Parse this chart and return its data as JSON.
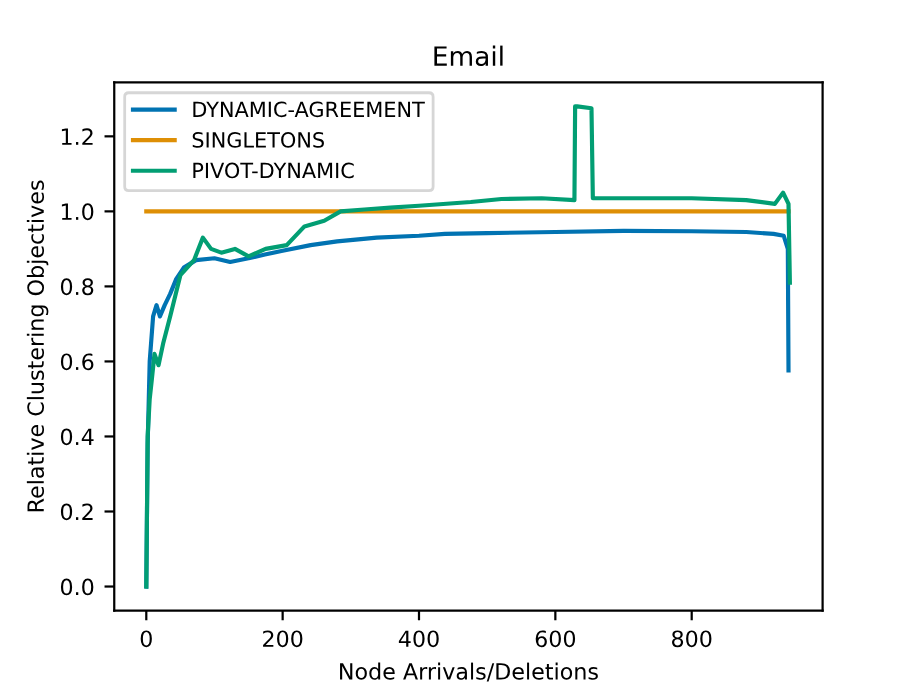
{
  "chart_data": {
    "type": "line",
    "title": "Email",
    "xlabel": "Node Arrivals/Deletions",
    "ylabel": "Relative Clustering Objectives",
    "xlim": [
      -47,
      992
    ],
    "xticks": [
      0,
      200,
      400,
      600,
      800
    ],
    "ylim": [
      -0.064,
      1.344
    ],
    "yticks": [
      {
        "value": 0,
        "label": "0.0"
      },
      {
        "value": 0.2,
        "label": "0.2"
      },
      {
        "value": 0.4,
        "label": "0.4"
      },
      {
        "value": 0.6,
        "label": "0.6"
      },
      {
        "value": 0.8,
        "label": "0.8"
      },
      {
        "value": 1,
        "label": "1.0"
      },
      {
        "value": 1.2,
        "label": "1.2"
      }
    ],
    "legend": "top left",
    "grid": false,
    "line_style": "solid",
    "marker": "none",
    "series": [
      {
        "name": "DYNAMIC-AGREEMENT",
        "color": "#0173b2",
        "x": [
          0,
          2,
          5,
          10,
          15,
          20,
          27,
          35,
          44,
          55,
          73,
          100,
          123,
          150,
          174,
          200,
          241,
          280,
          338,
          400,
          438,
          500,
          600,
          700,
          800,
          880,
          920,
          935,
          941,
          942
        ],
        "values": [
          0,
          0.38,
          0.6,
          0.72,
          0.75,
          0.72,
          0.75,
          0.78,
          0.82,
          0.85,
          0.87,
          0.875,
          0.865,
          0.875,
          0.885,
          0.895,
          0.91,
          0.92,
          0.93,
          0.935,
          0.94,
          0.942,
          0.945,
          0.948,
          0.947,
          0.945,
          0.94,
          0.935,
          0.9,
          0.576
        ]
      },
      {
        "name": "SINGLETONS",
        "color": "#de8f05",
        "x": [
          0,
          942
        ],
        "values": [
          1.0,
          1.0
        ]
      },
      {
        "name": "PIVOT-DYNAMIC",
        "color": "#029e73",
        "x": [
          0,
          1,
          2,
          5,
          8,
          12,
          18,
          25,
          35,
          50,
          70,
          83,
          95,
          110,
          130,
          150,
          175,
          206,
          232,
          261,
          285,
          320,
          358,
          400,
          476,
          521,
          580,
          628,
          629,
          632,
          653,
          655,
          700,
          800,
          880,
          922,
          934,
          942,
          944
        ],
        "values": [
          0,
          0.2,
          0.4,
          0.5,
          0.55,
          0.62,
          0.59,
          0.65,
          0.72,
          0.83,
          0.87,
          0.93,
          0.9,
          0.89,
          0.9,
          0.88,
          0.9,
          0.91,
          0.96,
          0.975,
          1.0,
          1.005,
          1.01,
          1.015,
          1.025,
          1.033,
          1.035,
          1.03,
          1.28,
          1.28,
          1.275,
          1.035,
          1.035,
          1.035,
          1.03,
          1.02,
          1.05,
          1.02,
          0.81
        ]
      }
    ]
  }
}
